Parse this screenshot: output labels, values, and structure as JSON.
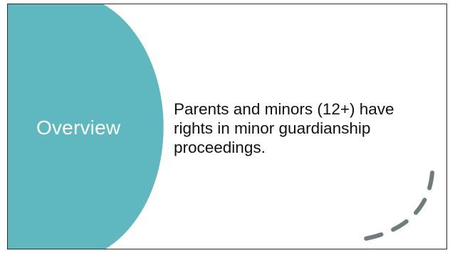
{
  "slide": {
    "section_title": "Overview",
    "body_text": "Parents and minors (12+) have rights in minor guardianship proceedings."
  },
  "colors": {
    "accent_teal": "#5fb7bf",
    "dash_gray": "#6f7c7d",
    "text": "#111111",
    "background": "#ffffff"
  }
}
